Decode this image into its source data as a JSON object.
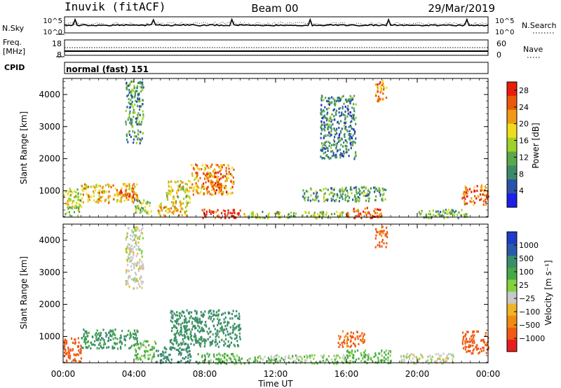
{
  "header": {
    "station": "Inuvik (fitACF)",
    "beam": "Beam 00",
    "date": "29/Mar/2019"
  },
  "strip1": {
    "left_label": "N.Sky",
    "left_ticks": [
      "10^5",
      "10^0"
    ],
    "right_ticks": [
      "10^5",
      "10^0"
    ],
    "right_label": "N.Search"
  },
  "strip2": {
    "left_label_1": "Freq.",
    "left_label_2": "[MHz]",
    "left_ticks": [
      "18",
      "8"
    ],
    "right_ticks": [
      "60",
      "0"
    ],
    "right_label": "Nave"
  },
  "strip3": {
    "label": "CPID",
    "mode_text": "normal (fast) 151"
  },
  "colors": {
    "power": [
      "#1e1ee6",
      "#2a52a8",
      "#3d8a6a",
      "#5aa84a",
      "#9ed228",
      "#f0dc1e",
      "#f09a14",
      "#e85a0a",
      "#e81e0a"
    ],
    "velocity": [
      "#e61e1e",
      "#f05a14",
      "#f08c14",
      "#f0b428",
      "#c8c8c8",
      "#82d23c",
      "#46aa46",
      "#3c8c6e",
      "#2a5aa8",
      "#1e3cc8"
    ]
  },
  "chart_data": [
    {
      "type": "heatmap",
      "panel": "power",
      "ylabel": "Slant Range [km]",
      "y_ticks": [
        "1000",
        "2000",
        "3000",
        "4000"
      ],
      "ylim": [
        180,
        4500
      ],
      "x_ticks": [
        "00:00",
        "04:00",
        "08:00",
        "12:00",
        "16:00",
        "20:00",
        "00:00"
      ],
      "xlim": [
        0,
        24
      ],
      "colorbar": {
        "label": "Power [dB]",
        "ticks": [
          "4",
          "8",
          "12",
          "16",
          "20",
          "24",
          "28"
        ],
        "range": [
          0,
          30
        ]
      },
      "regions": [
        {
          "t": [
            0.0,
            1.0
          ],
          "r": [
            250,
            1100
          ],
          "v": 15
        },
        {
          "t": [
            1.0,
            4.2
          ],
          "r": [
            650,
            1250
          ],
          "v": 20
        },
        {
          "t": [
            3.0,
            4.0
          ],
          "r": [
            800,
            1050
          ],
          "v": 26
        },
        {
          "t": [
            4.0,
            5.0
          ],
          "r": [
            300,
            750
          ],
          "v": 14
        },
        {
          "t": [
            5.3,
            7.0
          ],
          "r": [
            250,
            650
          ],
          "v": 20
        },
        {
          "t": [
            5.8,
            7.2
          ],
          "r": [
            600,
            1350
          ],
          "v": 18
        },
        {
          "t": [
            7.2,
            9.6
          ],
          "r": [
            900,
            1850
          ],
          "v": 22
        },
        {
          "t": [
            8.0,
            9.0
          ],
          "r": [
            1000,
            1600
          ],
          "v": 26
        },
        {
          "t": [
            7.8,
            10.2
          ],
          "r": [
            180,
            450
          ],
          "v": 28
        },
        {
          "t": [
            10.2,
            15.8
          ],
          "r": [
            180,
            380
          ],
          "v": 14
        },
        {
          "t": [
            15.8,
            18.0
          ],
          "r": [
            180,
            500
          ],
          "v": 26
        },
        {
          "t": [
            13.5,
            18.2
          ],
          "r": [
            700,
            1150
          ],
          "v": 11
        },
        {
          "t": [
            17.6,
            18.3
          ],
          "r": [
            3800,
            4450
          ],
          "v": 22
        },
        {
          "t": [
            22.5,
            24.0
          ],
          "r": [
            600,
            1200
          ],
          "v": 24
        },
        {
          "t": [
            20.0,
            22.8
          ],
          "r": [
            180,
            450
          ],
          "v": 12
        },
        {
          "t": [
            3.5,
            4.5
          ],
          "r": [
            2500,
            4450
          ],
          "v": 10
        },
        {
          "t": [
            14.5,
            16.5
          ],
          "r": [
            2000,
            4000
          ],
          "v": 8
        }
      ]
    },
    {
      "type": "heatmap",
      "panel": "velocity",
      "ylabel": "Slant Range [km]",
      "y_ticks": [
        "1000",
        "2000",
        "3000",
        "4000"
      ],
      "ylim": [
        180,
        4500
      ],
      "x_ticks": [
        "00:00",
        "04:00",
        "08:00",
        "12:00",
        "16:00",
        "20:00",
        "00:00"
      ],
      "xlabel": "Time UT",
      "xlim": [
        0,
        24
      ],
      "colorbar": {
        "label": "Velocity [m s⁻¹]",
        "ticks": [
          "1000",
          "500",
          "100",
          "25",
          "−25",
          "−100",
          "−500",
          "−1000"
        ]
      },
      "regions": [
        {
          "t": [
            0.0,
            1.0
          ],
          "r": [
            200,
            1000
          ],
          "v": -300
        },
        {
          "t": [
            1.0,
            4.2
          ],
          "r": [
            650,
            1250
          ],
          "v": 120
        },
        {
          "t": [
            4.0,
            5.2
          ],
          "r": [
            300,
            900
          ],
          "v": 60
        },
        {
          "t": [
            5.2,
            7.2
          ],
          "r": [
            200,
            700
          ],
          "v": 200
        },
        {
          "t": [
            6.0,
            10.0
          ],
          "r": [
            700,
            1850
          ],
          "v": 150
        },
        {
          "t": [
            7.5,
            10.5
          ],
          "r": [
            180,
            500
          ],
          "v": 60
        },
        {
          "t": [
            10.5,
            16.0
          ],
          "r": [
            180,
            450
          ],
          "v": 40
        },
        {
          "t": [
            15.5,
            17.0
          ],
          "r": [
            700,
            1200
          ],
          "v": -120
        },
        {
          "t": [
            16.0,
            18.5
          ],
          "r": [
            200,
            600
          ],
          "v": 60
        },
        {
          "t": [
            17.6,
            18.3
          ],
          "r": [
            3800,
            4450
          ],
          "v": -150
        },
        {
          "t": [
            22.5,
            24.0
          ],
          "r": [
            500,
            1200
          ],
          "v": -300
        },
        {
          "t": [
            19.0,
            22.0
          ],
          "r": [
            180,
            500
          ],
          "v": 0
        },
        {
          "t": [
            3.5,
            4.5
          ],
          "r": [
            2500,
            4450
          ],
          "v": 0
        }
      ]
    }
  ]
}
